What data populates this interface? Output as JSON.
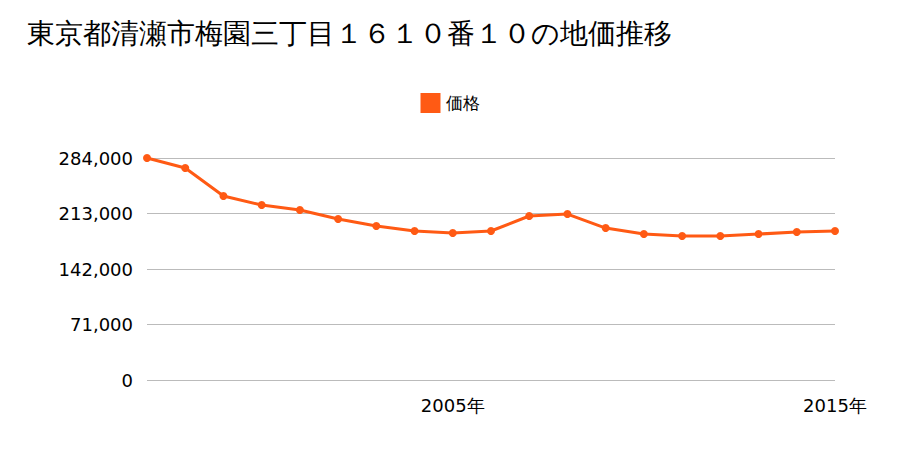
{
  "chart_data": {
    "type": "line",
    "title": "東京都清瀬市梅園三丁目１６１０番１０の地価推移",
    "categories": [
      null,
      null,
      null,
      null,
      null,
      null,
      null,
      null,
      "2005年",
      null,
      null,
      null,
      null,
      null,
      null,
      null,
      null,
      null,
      "2015年"
    ],
    "series": [
      {
        "name": "価格",
        "color": "#ff5a14",
        "values": [
          284000,
          271200,
          235300,
          223800,
          217400,
          205900,
          197000,
          190600,
          188000,
          190600,
          209800,
          212300,
          194400,
          186700,
          184200,
          184200,
          186700,
          189300,
          190600
        ]
      }
    ],
    "ylim": [
      0,
      284000
    ],
    "yticks": [
      0,
      {
        "value": 71000,
        "label": "71,000"
      },
      {
        "value": 142000,
        "label": "142,000"
      },
      {
        "value": 213000,
        "label": "213,000"
      },
      {
        "value": 284000,
        "label": "284,000"
      }
    ],
    "grid": true,
    "legend": "top",
    "marker": "circle"
  }
}
